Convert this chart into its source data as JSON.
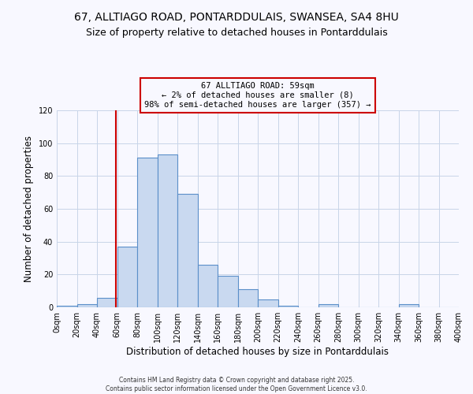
{
  "title1": "67, ALLTIAGO ROAD, PONTARDDULAIS, SWANSEA, SA4 8HU",
  "title2": "Size of property relative to detached houses in Pontarddulais",
  "xlabel": "Distribution of detached houses by size in Pontarddulais",
  "ylabel": "Number of detached properties",
  "bin_edges": [
    0,
    20,
    40,
    60,
    80,
    100,
    120,
    140,
    160,
    180,
    200,
    220,
    240,
    260,
    280,
    300,
    320,
    340,
    360,
    380,
    400
  ],
  "counts": [
    1,
    2,
    6,
    37,
    91,
    93,
    69,
    26,
    19,
    11,
    5,
    1,
    0,
    2,
    0,
    0,
    0,
    2,
    0,
    0
  ],
  "bar_facecolor": "#c9d9f0",
  "bar_edgecolor": "#5b8fc9",
  "vline_x": 59,
  "vline_color": "#cc0000",
  "annotation_title": "67 ALLTIAGO ROAD: 59sqm",
  "annotation_line1": "← 2% of detached houses are smaller (8)",
  "annotation_line2": "98% of semi-detached houses are larger (357) →",
  "annotation_box_edgecolor": "#cc0000",
  "ylim": [
    0,
    120
  ],
  "yticks": [
    0,
    20,
    40,
    60,
    80,
    100,
    120
  ],
  "grid_color": "#c8d4e8",
  "footer1": "Contains HM Land Registry data © Crown copyright and database right 2025.",
  "footer2": "Contains public sector information licensed under the Open Government Licence v3.0.",
  "bg_color": "#f8f8ff",
  "title1_fontsize": 10,
  "title2_fontsize": 9,
  "tick_label_fontsize": 7,
  "xlabel_fontsize": 8.5,
  "ylabel_fontsize": 8.5,
  "annotation_fontsize": 7.5,
  "footer_fontsize": 5.5
}
